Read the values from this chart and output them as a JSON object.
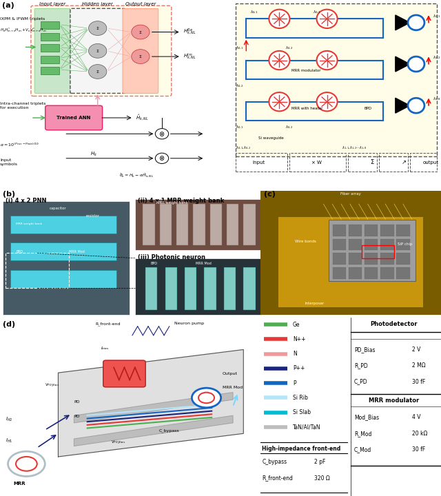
{
  "fig_width": 6.4,
  "fig_height": 7.2,
  "dpi": 100,
  "bg_color": "#ffffff",
  "legend_items": [
    {
      "label": "Ge",
      "color": "#4caf50",
      "lw": 4
    },
    {
      "label": "N++",
      "color": "#e53935",
      "lw": 4
    },
    {
      "label": "N",
      "color": "#ef9a9a",
      "lw": 4
    },
    {
      "label": "P++",
      "color": "#1a237e",
      "lw": 4
    },
    {
      "label": "P",
      "color": "#1565c0",
      "lw": 4
    },
    {
      "label": "Si Rib",
      "color": "#b3e5fc",
      "lw": 4
    },
    {
      "label": "Si Slab",
      "color": "#00bcd4",
      "lw": 4
    },
    {
      "label": "TaN/Al/TaN",
      "color": "#bdbdbd",
      "lw": 4
    }
  ],
  "photodetector_table": {
    "title": "Photodetector",
    "rows": [
      [
        "PD_Bias",
        "2 V"
      ],
      [
        "R_PD",
        "2 MΩ"
      ],
      [
        "C_PD",
        "30 fF"
      ]
    ]
  },
  "mrr_modulator_table": {
    "title": "MRR modulator",
    "rows": [
      [
        "Mod_Bias",
        "4 V"
      ],
      [
        "R_Mod",
        "20 kΩ"
      ],
      [
        "C_Mod",
        "30 fF"
      ]
    ]
  },
  "hiz_table": {
    "title": "High-impedance front-end",
    "rows": [
      [
        "C_bypass",
        "2 pF"
      ],
      [
        "R_front-end",
        "320 Ω"
      ]
    ]
  }
}
